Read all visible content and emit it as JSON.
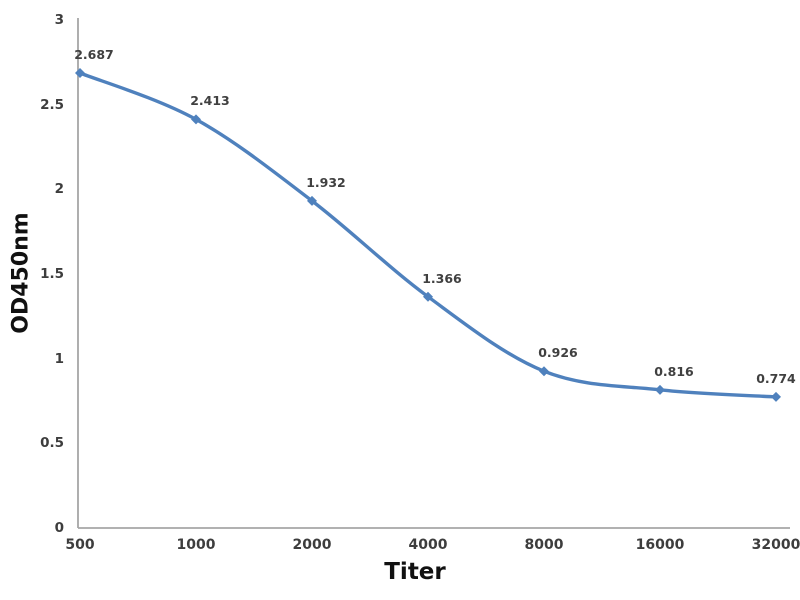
{
  "chart_data": {
    "type": "line",
    "title": "",
    "xlabel": "Titer",
    "ylabel": "OD450nm",
    "categories": [
      "500",
      "1000",
      "2000",
      "4000",
      "8000",
      "16000",
      "32000"
    ],
    "values": [
      2.687,
      2.413,
      1.932,
      1.366,
      0.926,
      0.816,
      0.774
    ],
    "data_labels": [
      "2.687",
      "2.413",
      "1.932",
      "1.366",
      "0.926",
      "0.816",
      "0.774"
    ],
    "y_ticks": [
      "0",
      "0.5",
      "1",
      "1.5",
      "2",
      "2.5",
      "3"
    ],
    "y_tick_values": [
      0,
      0.5,
      1,
      1.5,
      2,
      2.5,
      3
    ],
    "ylim": [
      0,
      3
    ],
    "grid": false,
    "legend_position": "none",
    "line_style": "smooth",
    "marker": "diamond",
    "colors": {
      "series": "#4F81BD",
      "axis": "#A6A6A6",
      "tick_label": "#3D3D3D",
      "data_label": "#404040",
      "title": "#111111",
      "background": "#FFFFFF"
    }
  }
}
